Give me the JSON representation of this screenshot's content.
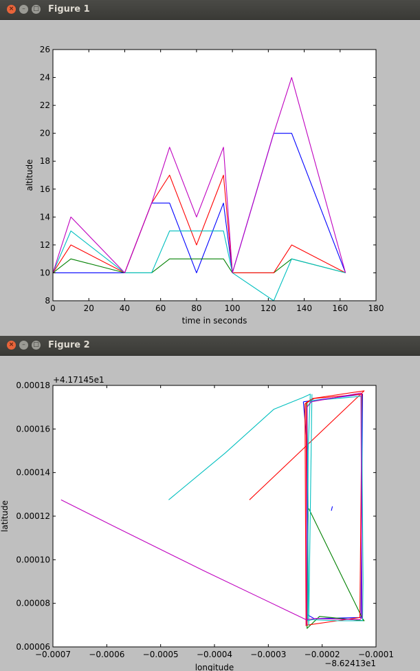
{
  "windows": [
    {
      "title": "Figure 1",
      "close_glyph": "×",
      "min_glyph": "–",
      "max_glyph": "□"
    },
    {
      "title": "Figure 2",
      "close_glyph": "×",
      "min_glyph": "–",
      "max_glyph": "□"
    }
  ],
  "chart_data": [
    {
      "type": "line",
      "title": "",
      "xlabel": "time in seconds",
      "ylabel": "altitude",
      "xlim": [
        0,
        180
      ],
      "ylim": [
        8,
        26
      ],
      "x_ticks": [
        0,
        20,
        40,
        60,
        80,
        100,
        120,
        140,
        160,
        180
      ],
      "y_ticks": [
        8,
        10,
        12,
        14,
        16,
        18,
        20,
        22,
        24,
        26
      ],
      "grid": false,
      "series": [
        {
          "color": "#0000ff",
          "x": [
            0,
            40,
            55,
            65,
            80,
            95,
            100,
            123,
            133,
            163
          ],
          "y": [
            10,
            10,
            15,
            15,
            10,
            15,
            10,
            20,
            20,
            10
          ]
        },
        {
          "color": "#008000",
          "x": [
            0,
            10,
            40,
            55,
            65,
            80,
            95,
            100,
            123,
            133,
            163
          ],
          "y": [
            10,
            11,
            10,
            10,
            11,
            11,
            11,
            10,
            10,
            11,
            10
          ]
        },
        {
          "color": "#ff0000",
          "x": [
            0,
            10,
            40,
            55,
            65,
            80,
            95,
            100,
            123,
            133,
            163
          ],
          "y": [
            10,
            12,
            10,
            15,
            17,
            12,
            17,
            10,
            10,
            12,
            10
          ]
        },
        {
          "color": "#00bfbf",
          "x": [
            0,
            10,
            40,
            55,
            65,
            80,
            95,
            100,
            123,
            133,
            163
          ],
          "y": [
            10,
            13,
            10,
            10,
            13,
            13,
            13,
            10,
            8,
            11,
            10
          ]
        },
        {
          "color": "#bf00bf",
          "x": [
            0,
            10,
            40,
            55,
            65,
            80,
            95,
            100,
            123,
            133,
            163
          ],
          "y": [
            10,
            14,
            10,
            15,
            19,
            14,
            19,
            10,
            20,
            24,
            10
          ]
        }
      ]
    },
    {
      "type": "line",
      "title": "",
      "xlabel": "longitude",
      "ylabel": "latitude",
      "x_offset_label": "−8.62413e1",
      "y_offset_label": "+4.17145e1",
      "xlim": [
        -0.0007,
        -0.0001
      ],
      "ylim": [
        6e-05,
        0.00018
      ],
      "x_ticks": [
        -0.0007,
        -0.0006,
        -0.0005,
        -0.0004,
        -0.0003,
        -0.0002,
        -0.0001
      ],
      "x_tick_labels": [
        "−0.0007",
        "−0.0006",
        "−0.0005",
        "−0.0004",
        "−0.0003",
        "−0.0002",
        "−0.0001"
      ],
      "y_ticks": [
        6e-05,
        8e-05,
        0.0001,
        0.00012,
        0.00014,
        0.00016,
        0.00018
      ],
      "y_tick_labels": [
        "0.00006",
        "0.00008",
        "0.00010",
        "0.00012",
        "0.00014",
        "0.00016",
        "0.00018"
      ],
      "grid": false,
      "series": [
        {
          "color": "#0000ff",
          "x": [
            -0.000235,
            -0.000125,
            -0.000128,
            -0.000215,
            -0.000229,
            -0.000227,
            -0.000235
          ],
          "y": [
            0.0001725,
            0.000176,
            7.35e-05,
            7.3e-05,
            7.5e-05,
            0.00015,
            0.0001725
          ]
        },
        {
          "color": "#0000ff",
          "x": [
            -0.000183,
            -0.000181
          ],
          "y": [
            0.0001225,
            0.0001245
          ]
        },
        {
          "color": "#008000",
          "x": [
            -0.000225,
            -0.000125,
            -0.000122,
            -0.000205,
            -0.000228,
            -0.000226,
            -0.000228
          ],
          "y": [
            0.0001235,
            7.3e-05,
            7.2e-05,
            7.4e-05,
            6.85e-05,
            0.00012,
            0.000172
          ]
        },
        {
          "color": "#ff0000",
          "x": [
            -0.000335,
            -0.000122,
            -0.000218,
            -0.00023,
            -0.000228,
            -0.00013,
            -0.000126,
            -0.000215,
            -0.000232,
            -0.00023
          ],
          "y": [
            0.0001275,
            0.0001775,
            0.000174,
            0.000172,
            7e-05,
            7.35e-05,
            0.000176,
            0.000174,
            0.0001715,
            6.95e-05
          ]
        },
        {
          "color": "#00bfbf",
          "x": [
            -0.000485,
            -0.00038,
            -0.00029,
            -0.000235,
            -0.000222,
            -0.000226,
            -0.000227,
            -0.000218,
            -0.00017,
            -0.000125,
            -0.000124,
            -0.000127,
            -0.00022,
            -0.000228,
            -0.000225,
            -0.000219
          ],
          "y": [
            0.0001275,
            0.000149,
            0.000169,
            0.0001745,
            0.000176,
            0.00015,
            7.2e-05,
            7.25e-05,
            7.2e-05,
            7.2e-05,
            9e-05,
            0.000175,
            0.000173,
            0.00017,
            7e-05,
            0.000176
          ]
        },
        {
          "color": "#bf00bf",
          "x": [
            -0.000685,
            -0.00058,
            -0.00042,
            -0.00023,
            -0.000212,
            -0.00013,
            -0.000126,
            -0.000128,
            -0.00022,
            -0.000228,
            -0.000229
          ],
          "y": [
            0.0001275,
            0.0001145,
            9.5e-05,
            7.25e-05,
            7.3e-05,
            7.25e-05,
            7.35e-05,
            0.0001765,
            0.0001725,
            0.00017,
            7e-05
          ]
        }
      ]
    }
  ]
}
